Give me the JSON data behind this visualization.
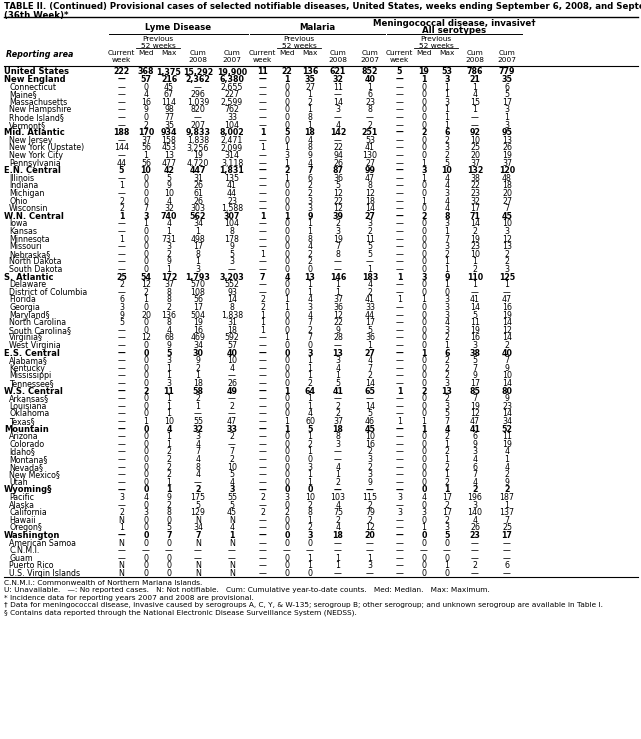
{
  "title_line1": "TABLE II. (Continued) Provisional cases of selected notifiable diseases, United States, weeks ending September 6, 2008, and September 8, 2007",
  "title_line2": "(36th Week)*",
  "rows": [
    [
      "United States",
      "222",
      "368",
      "1,375",
      "15,292",
      "19,900",
      "11",
      "22",
      "136",
      "621",
      "852",
      "5",
      "19",
      "53",
      "786",
      "779"
    ],
    [
      "New England",
      "—",
      "57",
      "216",
      "2,362",
      "6,380",
      "—",
      "1",
      "35",
      "32",
      "40",
      "—",
      "1",
      "3",
      "21",
      "35"
    ],
    [
      "Connecticut",
      "—",
      "0",
      "45",
      "—",
      "2,655",
      "—",
      "0",
      "27",
      "11",
      "1",
      "—",
      "0",
      "1",
      "1",
      "6"
    ],
    [
      "Maine§",
      "—",
      "4",
      "67",
      "296",
      "227",
      "—",
      "0",
      "1",
      "—",
      "6",
      "—",
      "0",
      "1",
      "4",
      "5"
    ],
    [
      "Massachusetts",
      "—",
      "16",
      "114",
      "1,039",
      "2,599",
      "—",
      "0",
      "2",
      "14",
      "23",
      "—",
      "0",
      "3",
      "15",
      "17"
    ],
    [
      "New Hampshire",
      "—",
      "9",
      "98",
      "820",
      "762",
      "—",
      "0",
      "1",
      "3",
      "8",
      "—",
      "0",
      "1",
      "1",
      "3"
    ],
    [
      "Rhode Island§",
      "—",
      "0",
      "77",
      "—",
      "33",
      "—",
      "0",
      "8",
      "—",
      "—",
      "—",
      "0",
      "1",
      "—",
      "1"
    ],
    [
      "Vermont§",
      "—",
      "2",
      "35",
      "207",
      "104",
      "—",
      "0",
      "1",
      "4",
      "2",
      "—",
      "0",
      "1",
      "—",
      "3"
    ],
    [
      "Mid. Atlantic",
      "188",
      "170",
      "934",
      "9,833",
      "8,002",
      "1",
      "5",
      "18",
      "142",
      "251",
      "—",
      "2",
      "6",
      "92",
      "95"
    ],
    [
      "New Jersey",
      "—",
      "37",
      "158",
      "1,838",
      "2,471",
      "—",
      "0",
      "4",
      "—",
      "53",
      "—",
      "0",
      "2",
      "10",
      "13"
    ],
    [
      "New York (Upstate)",
      "144",
      "56",
      "453",
      "3,256",
      "2,099",
      "1",
      "1",
      "8",
      "22",
      "41",
      "—",
      "0",
      "3",
      "25",
      "26"
    ],
    [
      "New York City",
      "—",
      "1",
      "13",
      "19",
      "314",
      "—",
      "3",
      "9",
      "94",
      "130",
      "—",
      "0",
      "2",
      "20",
      "19"
    ],
    [
      "Pennsylvania",
      "44",
      "56",
      "477",
      "4,720",
      "3,118",
      "—",
      "1",
      "4",
      "26",
      "27",
      "—",
      "1",
      "5",
      "37",
      "37"
    ],
    [
      "E.N. Central",
      "5",
      "10",
      "42",
      "447",
      "1,831",
      "—",
      "2",
      "7",
      "87",
      "99",
      "—",
      "3",
      "10",
      "132",
      "120"
    ],
    [
      "Illinois",
      "—",
      "0",
      "5",
      "31",
      "135",
      "—",
      "1",
      "6",
      "36",
      "47",
      "—",
      "1",
      "4",
      "38",
      "48"
    ],
    [
      "Indiana",
      "1",
      "0",
      "9",
      "26",
      "41",
      "—",
      "0",
      "2",
      "5",
      "8",
      "—",
      "0",
      "4",
      "22",
      "18"
    ],
    [
      "Michigan",
      "—",
      "0",
      "10",
      "61",
      "44",
      "—",
      "0",
      "2",
      "12",
      "12",
      "—",
      "0",
      "3",
      "23",
      "20"
    ],
    [
      "Ohio",
      "2",
      "0",
      "4",
      "26",
      "23",
      "—",
      "0",
      "3",
      "22",
      "18",
      "—",
      "1",
      "4",
      "32",
      "27"
    ],
    [
      "Wisconsin",
      "2",
      "7",
      "32",
      "303",
      "1,588",
      "—",
      "0",
      "3",
      "12",
      "14",
      "—",
      "0",
      "4",
      "17",
      "7"
    ],
    [
      "W.N. Central",
      "1",
      "3",
      "740",
      "562",
      "307",
      "1",
      "1",
      "9",
      "39",
      "27",
      "—",
      "2",
      "8",
      "71",
      "45"
    ],
    [
      "Iowa",
      "—",
      "1",
      "4",
      "34",
      "104",
      "—",
      "0",
      "1",
      "2",
      "3",
      "—",
      "0",
      "3",
      "14",
      "10"
    ],
    [
      "Kansas",
      "—",
      "0",
      "1",
      "1",
      "8",
      "—",
      "0",
      "1",
      "3",
      "2",
      "—",
      "0",
      "1",
      "2",
      "3"
    ],
    [
      "Minnesota",
      "1",
      "0",
      "731",
      "498",
      "178",
      "—",
      "0",
      "8",
      "19",
      "11",
      "—",
      "0",
      "7",
      "19",
      "12"
    ],
    [
      "Missouri",
      "—",
      "0",
      "3",
      "17",
      "9",
      "—",
      "0",
      "4",
      "7",
      "5",
      "—",
      "0",
      "3",
      "23",
      "13"
    ],
    [
      "Nebraska§",
      "—",
      "0",
      "2",
      "8",
      "5",
      "1",
      "0",
      "2",
      "8",
      "5",
      "—",
      "0",
      "2",
      "10",
      "2"
    ],
    [
      "North Dakota",
      "—",
      "0",
      "9",
      "1",
      "3",
      "—",
      "0",
      "2",
      "—",
      "—",
      "—",
      "0",
      "1",
      "1",
      "2"
    ],
    [
      "South Dakota",
      "—",
      "0",
      "1",
      "3",
      "—",
      "—",
      "0",
      "0",
      "—",
      "1",
      "—",
      "0",
      "1",
      "2",
      "3"
    ],
    [
      "S. Atlantic",
      "25",
      "54",
      "172",
      "1,793",
      "3,203",
      "7",
      "4",
      "13",
      "146",
      "183",
      "1",
      "3",
      "9",
      "110",
      "125"
    ],
    [
      "Delaware",
      "2",
      "12",
      "37",
      "570",
      "552",
      "—",
      "0",
      "1",
      "1",
      "4",
      "—",
      "0",
      "1",
      "1",
      "1"
    ],
    [
      "District of Columbia",
      "—",
      "2",
      "8",
      "108",
      "93",
      "—",
      "0",
      "1",
      "1",
      "2",
      "—",
      "0",
      "0",
      "—",
      "—"
    ],
    [
      "Florida",
      "6",
      "1",
      "8",
      "56",
      "14",
      "2",
      "1",
      "4",
      "37",
      "41",
      "1",
      "1",
      "3",
      "41",
      "47"
    ],
    [
      "Georgia",
      "3",
      "0",
      "2",
      "17",
      "8",
      "2",
      "1",
      "3",
      "36",
      "33",
      "—",
      "0",
      "3",
      "14",
      "16"
    ],
    [
      "Maryland§",
      "9",
      "20",
      "136",
      "504",
      "1,838",
      "1",
      "0",
      "4",
      "12",
      "44",
      "—",
      "0",
      "3",
      "5",
      "19"
    ],
    [
      "North Carolina",
      "5",
      "0",
      "8",
      "19",
      "31",
      "1",
      "0",
      "7",
      "22",
      "17",
      "—",
      "0",
      "4",
      "11",
      "14"
    ],
    [
      "South Carolina§",
      "—",
      "0",
      "4",
      "16",
      "18",
      "1",
      "0",
      "2",
      "9",
      "5",
      "—",
      "0",
      "3",
      "19",
      "12"
    ],
    [
      "Virginia§",
      "—",
      "12",
      "68",
      "469",
      "592",
      "—",
      "1",
      "7",
      "28",
      "36",
      "—",
      "0",
      "2",
      "16",
      "14"
    ],
    [
      "West Virginia",
      "—",
      "0",
      "9",
      "34",
      "57",
      "—",
      "0",
      "0",
      "—",
      "1",
      "—",
      "0",
      "1",
      "3",
      "2"
    ],
    [
      "E.S. Central",
      "—",
      "0",
      "5",
      "30",
      "40",
      "—",
      "0",
      "3",
      "13",
      "27",
      "—",
      "1",
      "6",
      "38",
      "40"
    ],
    [
      "Alabama§",
      "—",
      "0",
      "3",
      "9",
      "10",
      "—",
      "0",
      "1",
      "3",
      "4",
      "—",
      "0",
      "2",
      "5",
      "7"
    ],
    [
      "Kentucky",
      "—",
      "0",
      "1",
      "2",
      "4",
      "—",
      "0",
      "1",
      "4",
      "7",
      "—",
      "0",
      "2",
      "7",
      "9"
    ],
    [
      "Mississippi",
      "—",
      "0",
      "1",
      "1",
      "—",
      "—",
      "0",
      "1",
      "1",
      "2",
      "—",
      "0",
      "2",
      "9",
      "10"
    ],
    [
      "Tennessee§",
      "—",
      "0",
      "3",
      "18",
      "26",
      "—",
      "0",
      "2",
      "5",
      "14",
      "—",
      "0",
      "3",
      "17",
      "14"
    ],
    [
      "W.S. Central",
      "—",
      "2",
      "11",
      "58",
      "49",
      "—",
      "1",
      "64",
      "41",
      "65",
      "1",
      "2",
      "13",
      "85",
      "80"
    ],
    [
      "Arkansas§",
      "—",
      "0",
      "1",
      "2",
      "—",
      "—",
      "0",
      "1",
      "—",
      "—",
      "—",
      "0",
      "2",
      "7",
      "9"
    ],
    [
      "Louisiana",
      "—",
      "0",
      "1",
      "1",
      "2",
      "—",
      "0",
      "1",
      "2",
      "14",
      "—",
      "0",
      "3",
      "19",
      "23"
    ],
    [
      "Oklahoma",
      "—",
      "0",
      "1",
      "—",
      "—",
      "—",
      "0",
      "4",
      "2",
      "5",
      "—",
      "0",
      "5",
      "12",
      "14"
    ],
    [
      "Texas§",
      "—",
      "1",
      "10",
      "55",
      "47",
      "—",
      "1",
      "60",
      "37",
      "46",
      "1",
      "1",
      "7",
      "47",
      "34"
    ],
    [
      "Mountain",
      "—",
      "0",
      "4",
      "32",
      "33",
      "—",
      "1",
      "5",
      "18",
      "45",
      "—",
      "1",
      "4",
      "41",
      "52"
    ],
    [
      "Arizona",
      "—",
      "0",
      "1",
      "3",
      "2",
      "—",
      "0",
      "1",
      "8",
      "10",
      "—",
      "0",
      "2",
      "6",
      "11"
    ],
    [
      "Colorado",
      "—",
      "0",
      "1",
      "4",
      "—",
      "—",
      "0",
      "2",
      "3",
      "16",
      "—",
      "0",
      "1",
      "9",
      "19"
    ],
    [
      "Idaho§",
      "—",
      "0",
      "2",
      "7",
      "7",
      "—",
      "0",
      "1",
      "—",
      "2",
      "—",
      "0",
      "2",
      "3",
      "4"
    ],
    [
      "Montana§",
      "—",
      "0",
      "2",
      "4",
      "2",
      "—",
      "0",
      "0",
      "—",
      "3",
      "—",
      "0",
      "1",
      "4",
      "1"
    ],
    [
      "Nevada§",
      "—",
      "0",
      "2",
      "8",
      "10",
      "—",
      "0",
      "3",
      "4",
      "2",
      "—",
      "0",
      "2",
      "6",
      "4"
    ],
    [
      "New Mexico§",
      "—",
      "0",
      "2",
      "4",
      "5",
      "—",
      "0",
      "1",
      "1",
      "3",
      "—",
      "0",
      "1",
      "7",
      "2"
    ],
    [
      "Utah",
      "—",
      "0",
      "1",
      "—",
      "4",
      "—",
      "0",
      "1",
      "2",
      "9",
      "—",
      "0",
      "2",
      "4",
      "9"
    ],
    [
      "Wyoming§",
      "—",
      "0",
      "1",
      "2",
      "3",
      "—",
      "0",
      "0",
      "—",
      "—",
      "—",
      "0",
      "1",
      "2",
      "2"
    ],
    [
      "Pacific",
      "3",
      "4",
      "9",
      "175",
      "55",
      "2",
      "3",
      "10",
      "103",
      "115",
      "3",
      "4",
      "17",
      "196",
      "187"
    ],
    [
      "Alaska",
      "—",
      "0",
      "2",
      "5",
      "5",
      "—",
      "0",
      "2",
      "4",
      "2",
      "—",
      "0",
      "2",
      "3",
      "1"
    ],
    [
      "California",
      "2",
      "3",
      "8",
      "129",
      "45",
      "2",
      "2",
      "8",
      "75",
      "79",
      "3",
      "3",
      "17",
      "140",
      "137"
    ],
    [
      "Hawaii",
      "N",
      "0",
      "0",
      "N",
      "N",
      "—",
      "0",
      "1",
      "2",
      "2",
      "—",
      "0",
      "2",
      "4",
      "7"
    ],
    [
      "Oregon§",
      "1",
      "0",
      "5",
      "34",
      "4",
      "—",
      "0",
      "2",
      "4",
      "12",
      "—",
      "1",
      "3",
      "26",
      "25"
    ],
    [
      "Washington",
      "—",
      "0",
      "7",
      "7",
      "1",
      "—",
      "0",
      "3",
      "18",
      "20",
      "—",
      "0",
      "5",
      "23",
      "17"
    ],
    [
      "American Samoa",
      "N",
      "0",
      "0",
      "N",
      "N",
      "—",
      "0",
      "0",
      "—",
      "—",
      "—",
      "0",
      "0",
      "—",
      "—"
    ],
    [
      "C.N.M.I.",
      "—",
      "—",
      "—",
      "—",
      "—",
      "—",
      "—",
      "—",
      "—",
      "—",
      "—",
      "—",
      "—",
      "—",
      "—"
    ],
    [
      "Guam",
      "—",
      "0",
      "0",
      "—",
      "—",
      "—",
      "0",
      "1",
      "1",
      "1",
      "—",
      "0",
      "0",
      "—",
      "—"
    ],
    [
      "Puerto Rico",
      "N",
      "0",
      "0",
      "N",
      "N",
      "—",
      "0",
      "1",
      "1",
      "3",
      "—",
      "0",
      "1",
      "2",
      "6"
    ],
    [
      "U.S. Virgin Islands",
      "N",
      "0",
      "0",
      "N",
      "N",
      "—",
      "0",
      "0",
      "—",
      "—",
      "—",
      "0",
      "0",
      "—",
      "—"
    ]
  ],
  "bold_rows": [
    0,
    1,
    8,
    13,
    19,
    27,
    37,
    42,
    47,
    55,
    61
  ],
  "footnotes": [
    "C.N.M.I.: Commonwealth of Northern Mariana Islands.",
    "U: Unavailable.   —: No reported cases.   N: Not notifiable.   Cum: Cumulative year-to-date counts.   Med: Median.   Max: Maximum.",
    "* Incidence data for reporting years 2007 and 2008 are provisional.",
    "† Data for meningococcal disease, invasive caused by serogroups A, C, Y, & W-135; serogroup B; other serogroup; and unknown serogroup are available in Table I.",
    "§ Contains data reported through the National Electronic Disease Surveillance System (NEDSS)."
  ]
}
